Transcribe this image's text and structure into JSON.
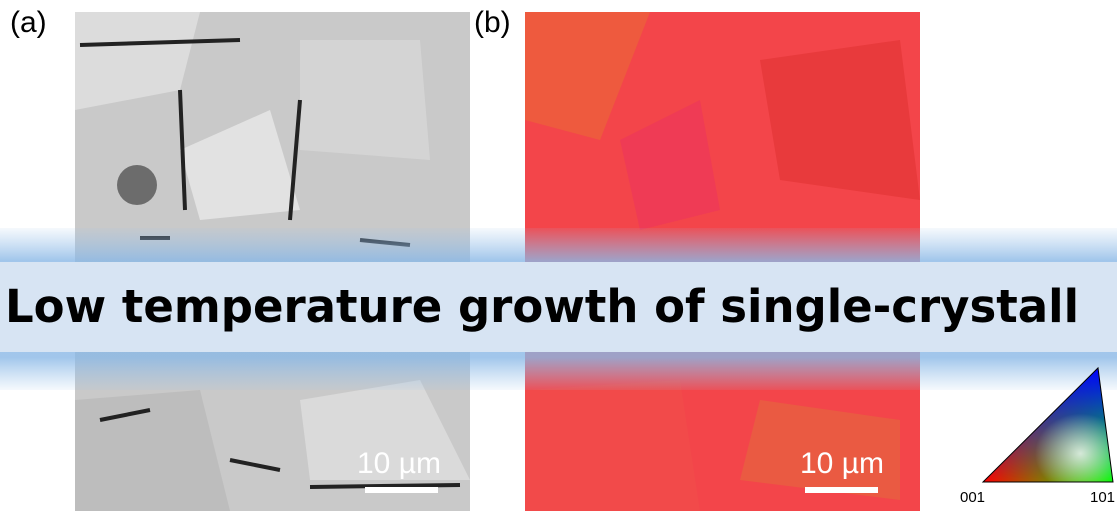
{
  "panels": [
    {
      "label": "(a)",
      "scale_bar": "10 µm"
    },
    {
      "label": "(b)",
      "scale_bar": "10 µm"
    }
  ],
  "banner": {
    "title": "Low temperature growth of single-crystall"
  },
  "legend": {
    "corner_left": "001",
    "corner_right": "101"
  }
}
